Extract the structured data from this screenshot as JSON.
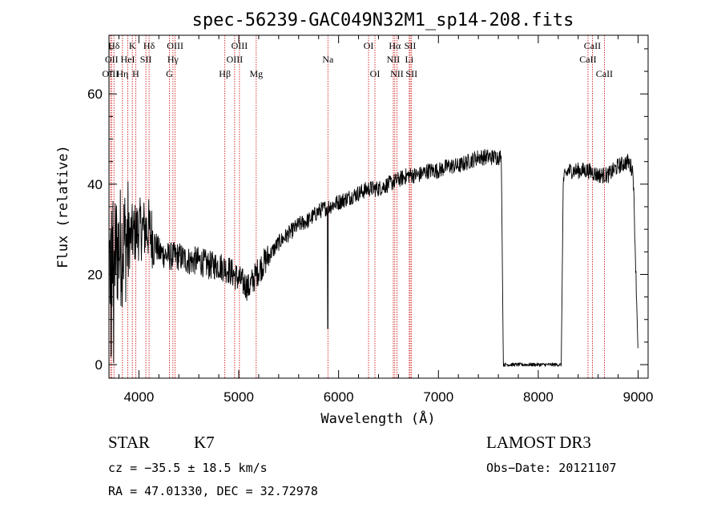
{
  "chart_data": {
    "type": "line",
    "title": "spec-56239-GAC049N32M1_sp14-208.fits",
    "xlabel": "Wavelength (Å)",
    "ylabel": "Flux (relative)",
    "xlim": [
      3700,
      9100
    ],
    "ylim": [
      -3,
      73
    ],
    "xticks": [
      4000,
      5000,
      6000,
      7000,
      8000,
      9000
    ],
    "xtick_labels": [
      "4000",
      "5000",
      "6000",
      "7000",
      "8000",
      "9000"
    ],
    "yticks": [
      0,
      20,
      40,
      60
    ],
    "ytick_labels": [
      "0",
      "20",
      "40",
      "60"
    ],
    "spectrum_anchors": {
      "x": [
        3700,
        3750,
        3800,
        3850,
        3900,
        3950,
        4000,
        4050,
        4100,
        4200,
        4300,
        4400,
        4500,
        4600,
        4700,
        4800,
        4900,
        5000,
        5100,
        5200,
        5300,
        5400,
        5500,
        5600,
        5700,
        5800,
        5900,
        6000,
        6100,
        6200,
        6300,
        6400,
        6500,
        6600,
        6700,
        6800,
        6900,
        7000,
        7100,
        7200,
        7300,
        7400,
        7500,
        7600,
        7630,
        7650,
        7700,
        8000,
        8200,
        8230,
        8250,
        8300,
        8400,
        8500,
        8600,
        8700,
        8800,
        8900,
        8950,
        9000
      ],
      "y": [
        22,
        25,
        26,
        27,
        28,
        29,
        30,
        30,
        30,
        25,
        24,
        24,
        23,
        23,
        22,
        22,
        21,
        19,
        17,
        21,
        24,
        27,
        29,
        31,
        32,
        34,
        35,
        36,
        37,
        38,
        39,
        39,
        40,
        41,
        42,
        42,
        43,
        43,
        44,
        44,
        45,
        46,
        46,
        46,
        46,
        0,
        0,
        0,
        0,
        0,
        41,
        43,
        43,
        43,
        42,
        42,
        44,
        45,
        43,
        2
      ]
    },
    "spectral_lines": [
      {
        "name": "Hδ",
        "wavelength": 3750,
        "row": 1
      },
      {
        "name": "OII",
        "wavelength": 3727,
        "row": 2
      },
      {
        "name": "OIII",
        "wavelength": 3715,
        "row": 3
      },
      {
        "name": "K",
        "wavelength": 3934,
        "row": 1
      },
      {
        "name": "HeI",
        "wavelength": 3889,
        "row": 2
      },
      {
        "name": "Hη",
        "wavelength": 3835,
        "row": 3
      },
      {
        "name": "SII",
        "wavelength": 4070,
        "row": 2
      },
      {
        "name": "H",
        "wavelength": 3968,
        "row": 3
      },
      {
        "name": "Hδ",
        "wavelength": 4102,
        "row": 1
      },
      {
        "name": "OIII",
        "wavelength": 4363,
        "row": 1
      },
      {
        "name": "Hγ",
        "wavelength": 4341,
        "row": 2
      },
      {
        "name": "G",
        "wavelength": 4305,
        "row": 3
      },
      {
        "name": "OIII",
        "wavelength": 5007,
        "row": 1
      },
      {
        "name": "OIII",
        "wavelength": 4959,
        "row": 2
      },
      {
        "name": "Hβ",
        "wavelength": 4861,
        "row": 3
      },
      {
        "name": "Mg",
        "wavelength": 5175,
        "row": 3
      },
      {
        "name": "Na",
        "wavelength": 5893,
        "row": 2
      },
      {
        "name": "OI",
        "wavelength": 6300,
        "row": 1
      },
      {
        "name": "OI",
        "wavelength": 6364,
        "row": 3
      },
      {
        "name": "Hα",
        "wavelength": 6563,
        "row": 1
      },
      {
        "name": "NII",
        "wavelength": 6548,
        "row": 2
      },
      {
        "name": "NII",
        "wavelength": 6584,
        "row": 3
      },
      {
        "name": "SII",
        "wavelength": 6717,
        "row": 1
      },
      {
        "name": "Li",
        "wavelength": 6708,
        "row": 2
      },
      {
        "name": "SII",
        "wavelength": 6731,
        "row": 3
      },
      {
        "name": "CaII",
        "wavelength": 8542,
        "row": 1
      },
      {
        "name": "CaII",
        "wavelength": 8498,
        "row": 2
      },
      {
        "name": "CaII",
        "wavelength": 8662,
        "row": 3
      }
    ],
    "colors": {
      "spectrum": "#000000",
      "line_markers": "#cc0000",
      "axes": "#000000"
    }
  },
  "info": {
    "object_class": "STAR",
    "subclass": "K7",
    "survey": "LAMOST DR3",
    "cz": "cz = −35.5 ± 18.5 km/s",
    "obs_date": "Obs−Date: 20121107",
    "coords": "RA =  47.01330, DEC =  32.72978"
  }
}
